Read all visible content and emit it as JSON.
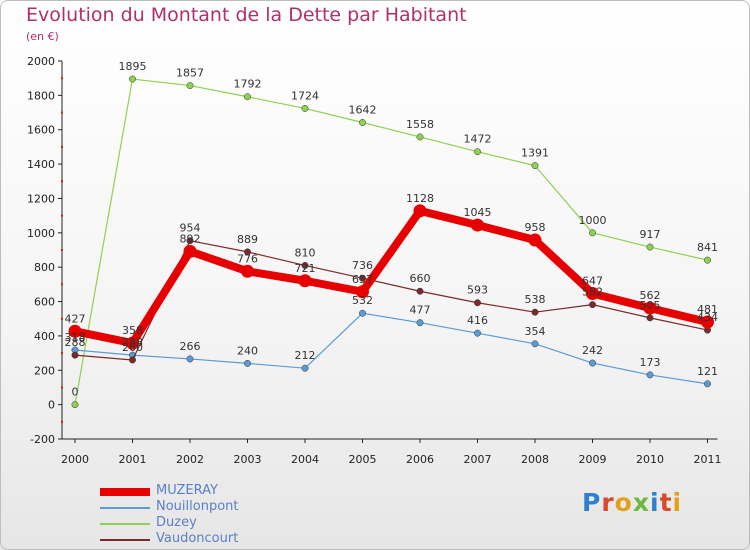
{
  "title": "Evolution du Montant de la Dette par Habitant",
  "subtitle": "(en €)",
  "chart_data": {
    "type": "line",
    "categories": [
      "2000",
      "2001",
      "2002",
      "2003",
      "2004",
      "2005",
      "2006",
      "2007",
      "2008",
      "2009",
      "2010",
      "2011"
    ],
    "ylim": [
      -200,
      2000
    ],
    "yticks": [
      -200,
      0,
      200,
      400,
      600,
      800,
      1000,
      1200,
      1400,
      1600,
      1800,
      2000
    ],
    "grid": false,
    "legend_position": "bottom-left",
    "series": [
      {
        "name": "MUZERAY",
        "color": "#e60000",
        "values": [
          427,
          358,
          892,
          776,
          721,
          657,
          1128,
          1045,
          958,
          647,
          562,
          481
        ]
      },
      {
        "name": "Nouillonpont",
        "color": "#5b9bd5",
        "values": [
          318,
          288,
          266,
          240,
          212,
          532,
          477,
          416,
          354,
          242,
          173,
          121
        ]
      },
      {
        "name": "Duzey",
        "color": "#8fd14f",
        "values": [
          0,
          1895,
          1857,
          1792,
          1724,
          1642,
          1558,
          1472,
          1391,
          1000,
          917,
          841
        ]
      },
      {
        "name": "Vaudoncourt",
        "color": "#7a2a2a",
        "values": [
          288,
          260,
          954,
          889,
          810,
          736,
          660,
          593,
          538,
          582,
          505,
          434
        ]
      }
    ]
  },
  "legend": {
    "items": [
      {
        "label": "MUZERAY",
        "color": "#e60000"
      },
      {
        "label": "Nouillonpont",
        "color": "#5b9bd5"
      },
      {
        "label": "Duzey",
        "color": "#8fd14f"
      },
      {
        "label": "Vaudoncourt",
        "color": "#7a2a2a"
      }
    ]
  },
  "logo": {
    "letters": [
      "P",
      "r",
      "o",
      "x",
      "i",
      "t",
      "i"
    ],
    "colors": [
      "#2f7fd1",
      "#d84a2a",
      "#e2a11b",
      "#6cb93c",
      "#2f7fd1",
      "#d84a2a",
      "#e2a11b"
    ]
  }
}
